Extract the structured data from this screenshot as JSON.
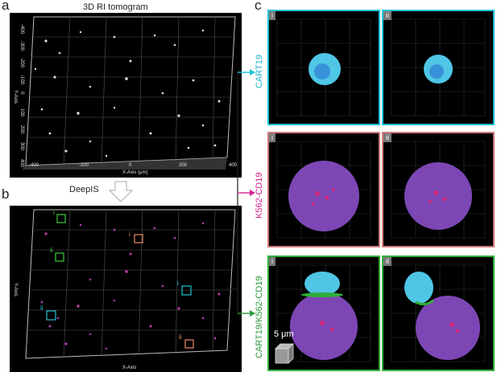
{
  "figure": {
    "panel_a_letter": "a",
    "panel_b_letter": "b",
    "panel_c_letter": "c",
    "panel_a_title": "3D RI tomogram",
    "arrow_label": "DeepIS",
    "panel_a_xlabel": "X-Axis (μm)",
    "panel_b_xlabel": "X-Axis",
    "ylabel": "Y-Axis",
    "x_ticks": [
      "-400",
      "-200",
      "0",
      "200",
      "400"
    ],
    "y_ticks": [
      "-400",
      "-300",
      "-200",
      "-100",
      "0",
      "100",
      "200",
      "300",
      "400"
    ],
    "roi_labels": {
      "green_i": "i",
      "green_ii": "ii",
      "orange_i": "i",
      "orange_ii": "ii",
      "cyan_i": "i",
      "cyan_ii": "ii"
    },
    "rows": [
      {
        "label": "CART19",
        "color": "#1fb6cf",
        "left_tag": "i",
        "right_tag": "ii"
      },
      {
        "label": "K562-CD19",
        "color": "#d4208e",
        "left_tag": "i",
        "right_tag": "ii"
      },
      {
        "label": "CART19/K562-CD19",
        "color": "#2a9a3a",
        "left_tag": "i",
        "right_tag": "ii"
      }
    ],
    "scale_bar": "5 μm",
    "colors": {
      "cyan": "#1ec3d8",
      "pink_border": "#d27a7a",
      "green": "#2fae3a",
      "orange": "#f08a6a",
      "cell_purple": "#8a4fc8",
      "tcell_cyan": "#4fc6e6"
    }
  }
}
